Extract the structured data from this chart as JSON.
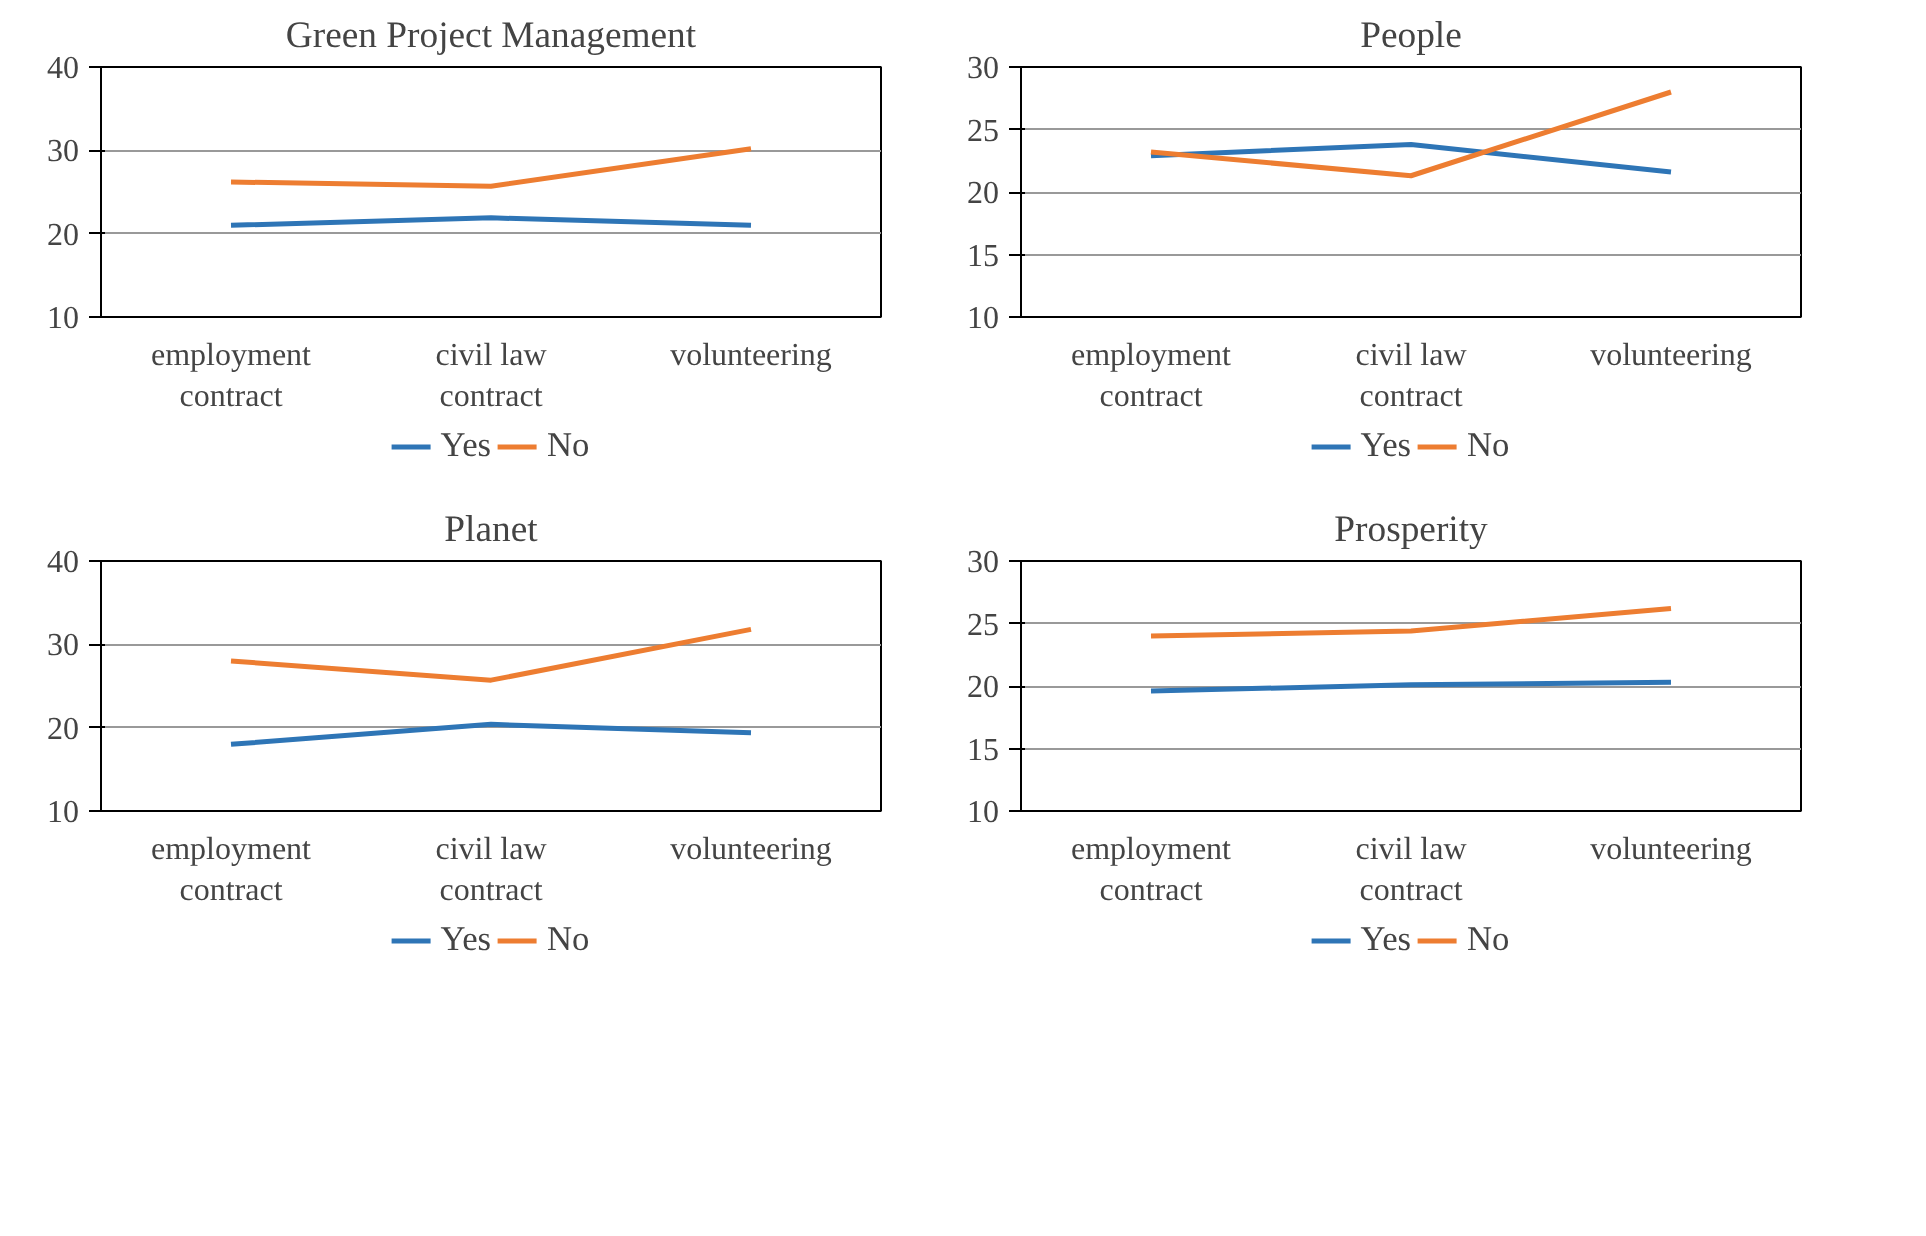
{
  "chart_data": [
    {
      "type": "line",
      "title": "Green Project Management",
      "categories": [
        "employment contract",
        "civil law contract",
        "volunteering"
      ],
      "ylim": [
        10,
        40
      ],
      "yticks": [
        10,
        20,
        30,
        40
      ],
      "grid": "y",
      "legend": "bottom",
      "marker": "none",
      "line_style": "solid",
      "series": [
        {
          "name": "Yes",
          "color": "#2e75b6",
          "values": [
            21.0,
            21.9,
            21.0
          ]
        },
        {
          "name": "No",
          "color": "#ed7d31",
          "values": [
            26.2,
            25.7,
            30.2
          ]
        }
      ]
    },
    {
      "type": "line",
      "title": "People",
      "categories": [
        "employment contract",
        "civil law contract",
        "volunteering"
      ],
      "ylim": [
        10,
        30
      ],
      "yticks": [
        10,
        15,
        20,
        25,
        30
      ],
      "grid": "y",
      "legend": "bottom",
      "marker": "none",
      "line_style": "solid",
      "series": [
        {
          "name": "Yes",
          "color": "#2e75b6",
          "values": [
            22.9,
            23.8,
            21.6
          ]
        },
        {
          "name": "No",
          "color": "#ed7d31",
          "values": [
            23.2,
            21.3,
            28.0
          ]
        }
      ]
    },
    {
      "type": "line",
      "title": "Planet",
      "categories": [
        "employment contract",
        "civil law contract",
        "volunteering"
      ],
      "ylim": [
        10,
        40
      ],
      "yticks": [
        10,
        20,
        30,
        40
      ],
      "grid": "y",
      "legend": "bottom",
      "marker": "none",
      "line_style": "solid",
      "series": [
        {
          "name": "Yes",
          "color": "#2e75b6",
          "values": [
            18.0,
            20.4,
            19.4
          ]
        },
        {
          "name": "No",
          "color": "#ed7d31",
          "values": [
            28.0,
            25.7,
            31.8
          ]
        }
      ]
    },
    {
      "type": "line",
      "title": "Prosperity",
      "categories": [
        "employment contract",
        "civil law contract",
        "volunteering"
      ],
      "ylim": [
        10,
        30
      ],
      "yticks": [
        10,
        15,
        20,
        25,
        30
      ],
      "grid": "y",
      "legend": "bottom",
      "marker": "none",
      "line_style": "solid",
      "series": [
        {
          "name": "Yes",
          "color": "#2e75b6",
          "values": [
            19.6,
            20.1,
            20.3
          ]
        },
        {
          "name": "No",
          "color": "#ed7d31",
          "values": [
            24.0,
            24.4,
            26.2
          ]
        }
      ]
    }
  ]
}
